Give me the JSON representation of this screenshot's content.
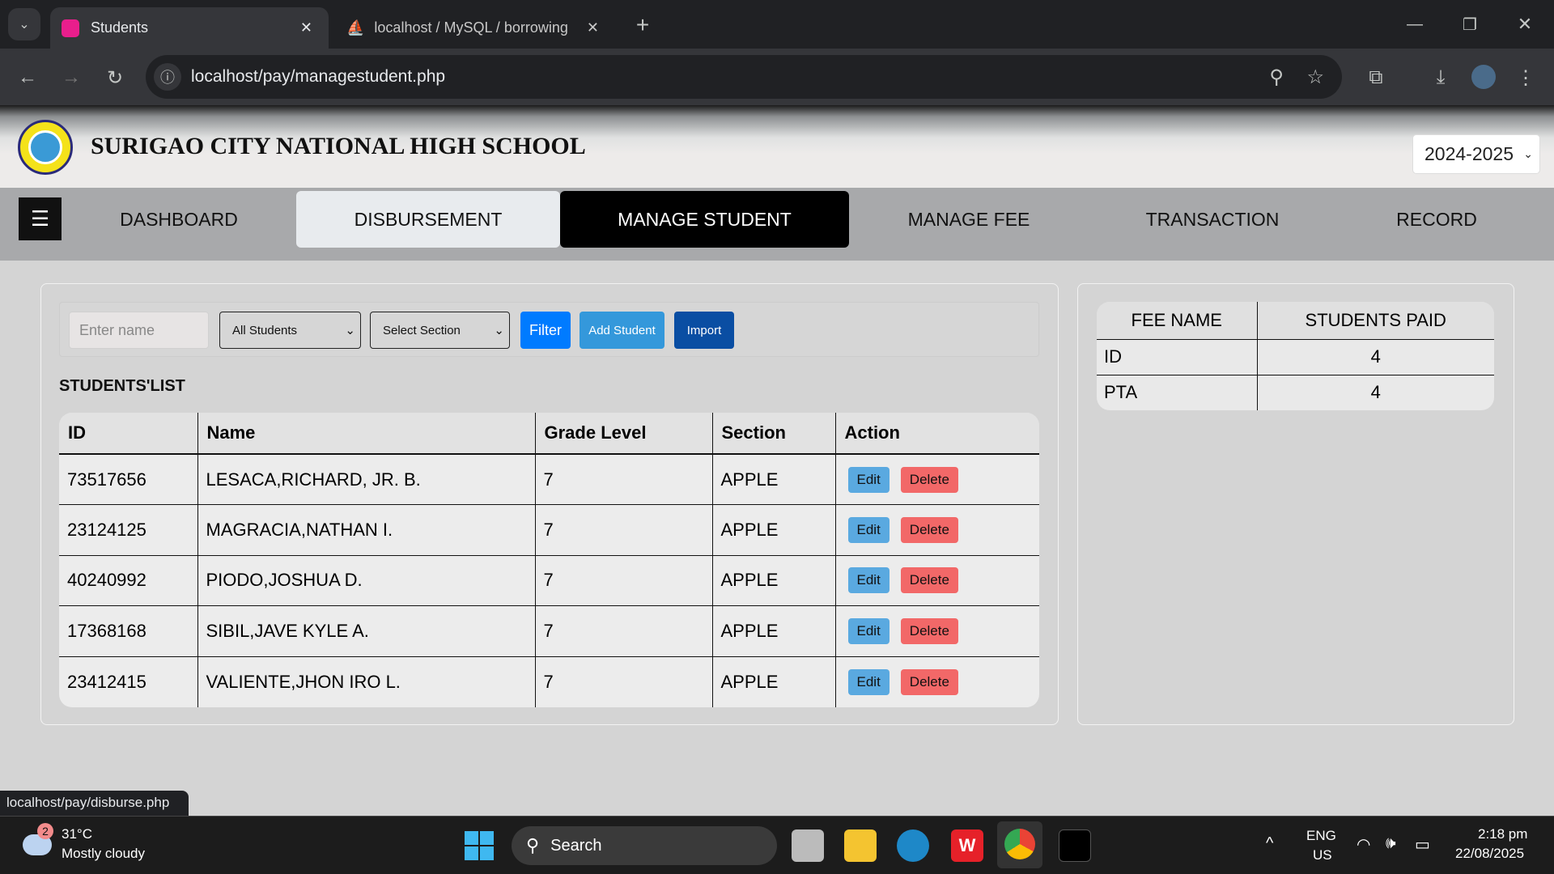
{
  "browser": {
    "tabs": [
      {
        "title": "Students",
        "active": true
      },
      {
        "title": "localhost / MySQL / borrowing",
        "active": false
      }
    ],
    "url": "localhost/pay/managestudent.php",
    "status_url": "localhost/pay/disburse.php"
  },
  "header": {
    "school_name": "SURIGAO CITY NATIONAL HIGH SCHOOL",
    "school_year": "2024-2025"
  },
  "nav": {
    "items": [
      "DASHBOARD",
      "DISBURSEMENT",
      "MANAGE STUDENT",
      "MANAGE FEE",
      "TRANSACTION",
      "RECORD"
    ],
    "active": "MANAGE STUDENT",
    "hovered": "DISBURSEMENT"
  },
  "filters": {
    "name_placeholder": "Enter name",
    "student_filter": "All Students",
    "section_filter": "Select Section",
    "filter_label": "Filter",
    "add_label": "Add Student",
    "import_label": "Import"
  },
  "students": {
    "title": "STUDENTS'LIST",
    "columns": [
      "ID",
      "Name",
      "Grade Level",
      "Section",
      "Action"
    ],
    "rows": [
      {
        "id": "73517656",
        "name": "LESACA,RICHARD, JR. B.",
        "grade": "7",
        "section": "APPLE"
      },
      {
        "id": "23124125",
        "name": "MAGRACIA,NATHAN I.",
        "grade": "7",
        "section": "APPLE"
      },
      {
        "id": "40240992",
        "name": "PIODO,JOSHUA D.",
        "grade": "7",
        "section": "APPLE"
      },
      {
        "id": "17368168",
        "name": "SIBIL,JAVE KYLE A.",
        "grade": "7",
        "section": "APPLE"
      },
      {
        "id": "23412415",
        "name": "VALIENTE,JHON IRO L.",
        "grade": "7",
        "section": "APPLE"
      }
    ],
    "edit_label": "Edit",
    "delete_label": "Delete"
  },
  "fees": {
    "columns": [
      "FEE NAME",
      "STUDENTS PAID"
    ],
    "rows": [
      {
        "name": "ID",
        "paid": "4"
      },
      {
        "name": "PTA",
        "paid": "4"
      }
    ]
  },
  "taskbar": {
    "weather_temp": "31°C",
    "weather_desc": "Mostly cloudy",
    "weather_badge": "2",
    "search_placeholder": "Search",
    "lang1": "ENG",
    "lang2": "US",
    "time": "2:18 pm",
    "date": "22/08/2025"
  },
  "colors": {
    "filter": "#007bff",
    "add": "#3498db",
    "import": "#0a4ea3",
    "edit": "#5aa9e0",
    "delete": "#f26868",
    "active_nav": "#000000"
  }
}
